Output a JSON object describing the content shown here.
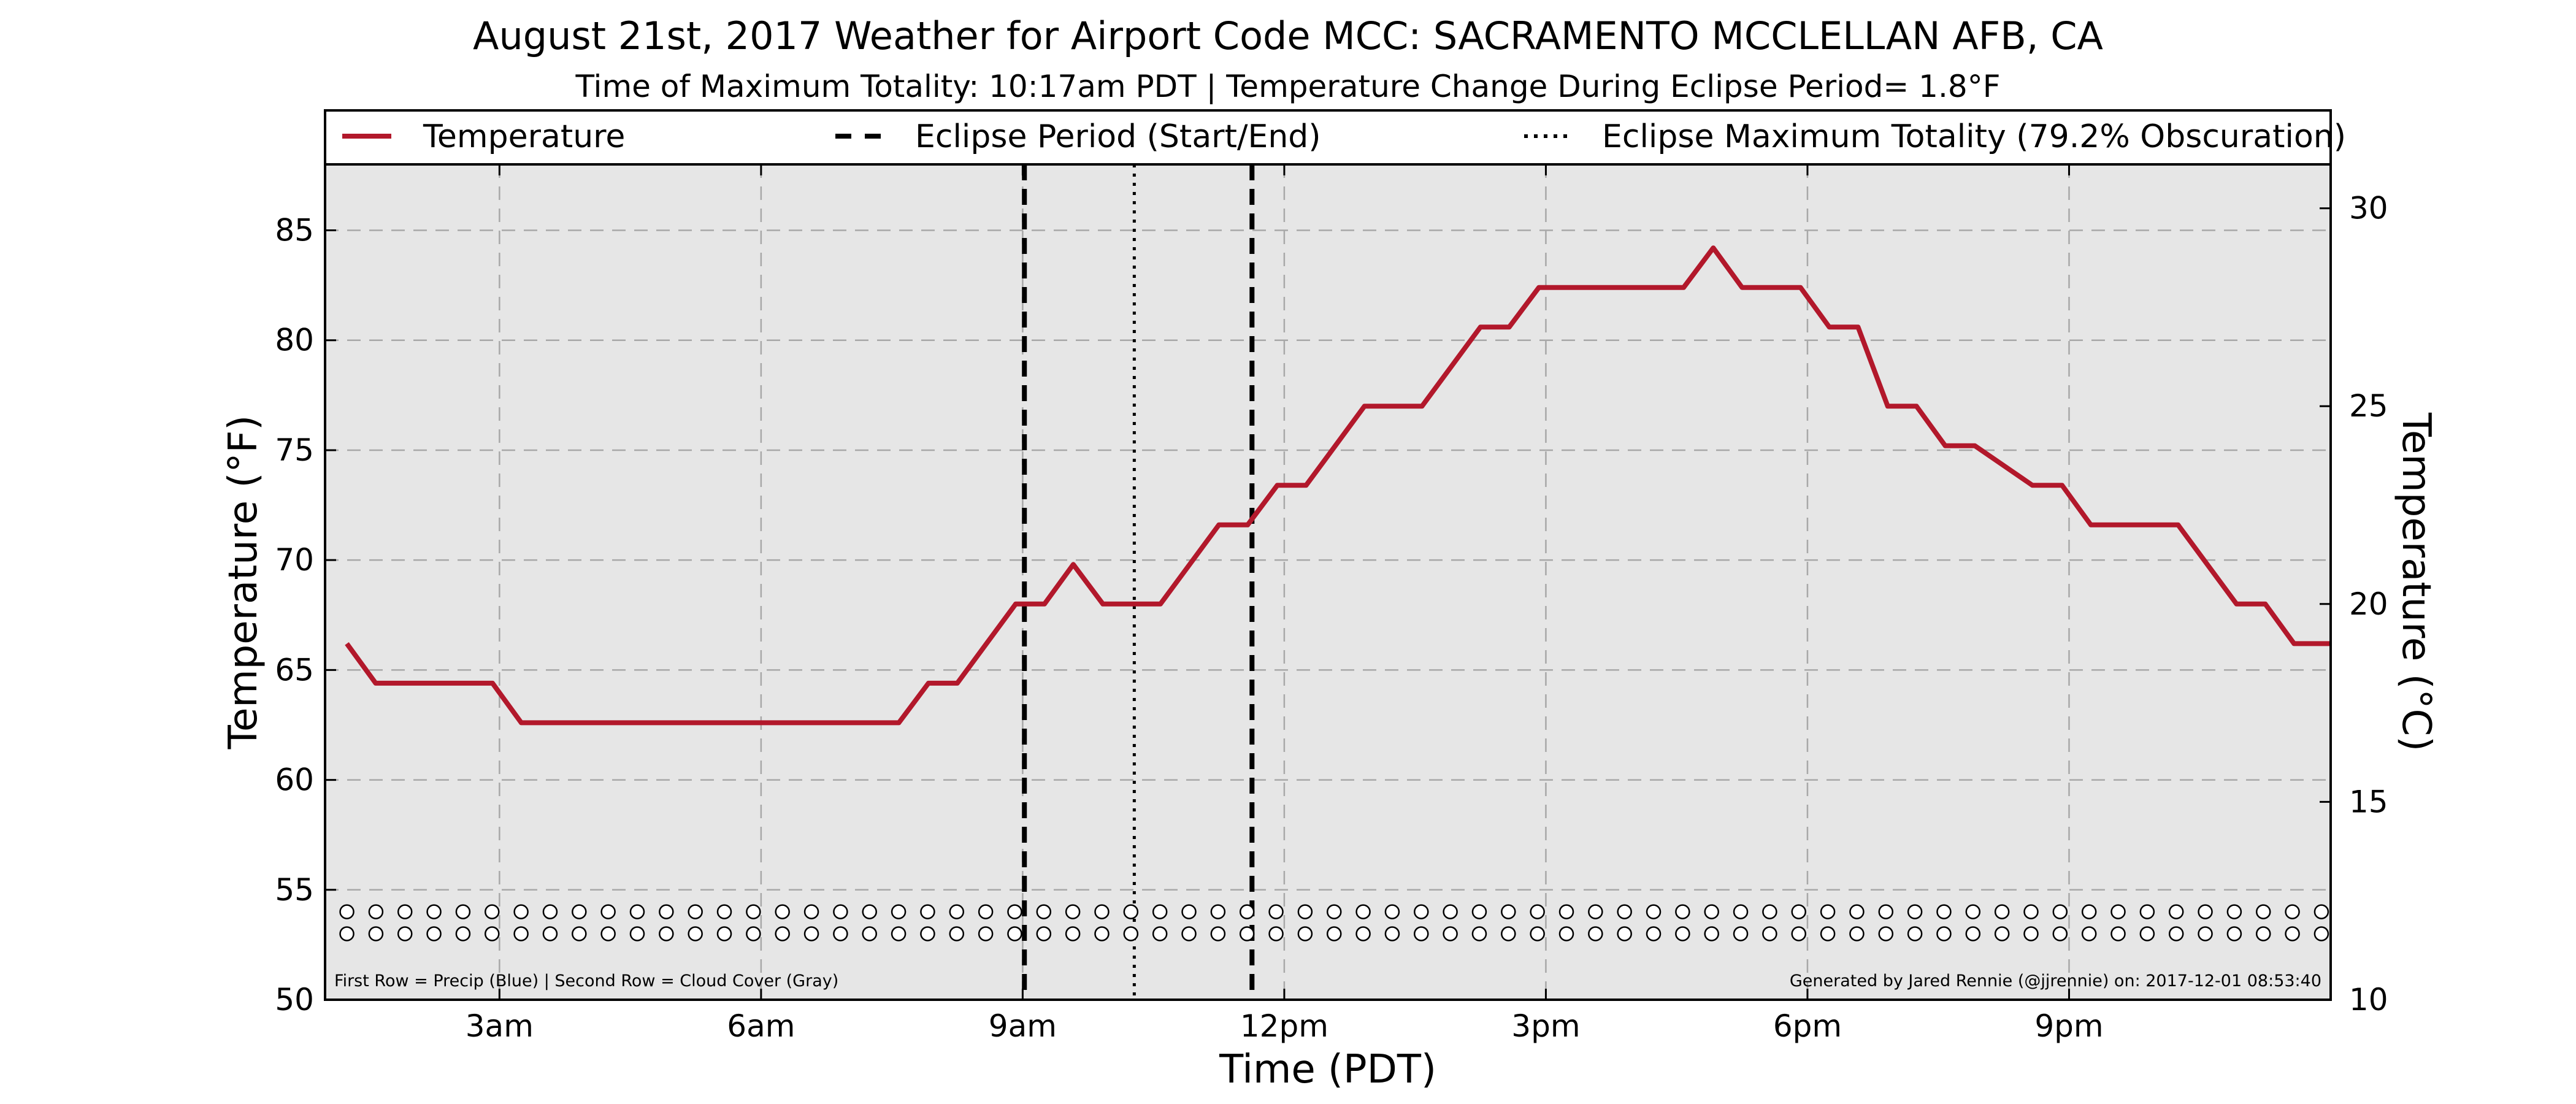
{
  "chart_data": {
    "type": "line",
    "title": "August 21st, 2017 Weather for Airport Code MCC: SACRAMENTO MCCLELLAN AFB, CA",
    "subtitle": "Time of Maximum Totality: 10:17am PDT | Temperature Change During Eclipse Period= 1.8°F",
    "xlabel": "Time (PDT)",
    "ylabel": "Temperature (°F)",
    "ylabel_right": "Temperature (°C)",
    "xlim": [
      1.0,
      24.0
    ],
    "ylim": [
      50,
      88
    ],
    "ylim_right": [
      10,
      31.11
    ],
    "x_ticks": [
      {
        "value": 3,
        "label": "3am"
      },
      {
        "value": 6,
        "label": "6am"
      },
      {
        "value": 9,
        "label": "9am"
      },
      {
        "value": 12,
        "label": "12pm"
      },
      {
        "value": 15,
        "label": "3pm"
      },
      {
        "value": 18,
        "label": "6pm"
      },
      {
        "value": 21,
        "label": "9pm"
      }
    ],
    "y_ticks": [
      "50",
      "55",
      "60",
      "65",
      "70",
      "75",
      "80",
      "85"
    ],
    "y_ticks_right": [
      "10",
      "15",
      "20",
      "25",
      "30"
    ],
    "grid": true,
    "legend_position": "top",
    "series": [
      {
        "name": "Temperature",
        "color": "#b2182b",
        "x": [
          1.25,
          1.58,
          2.92,
          3.25,
          7.58,
          7.92,
          8.25,
          8.92,
          9.25,
          9.58,
          9.92,
          10.58,
          11.25,
          11.58,
          11.92,
          12.25,
          12.92,
          13.58,
          14.25,
          14.58,
          14.92,
          16.58,
          16.92,
          17.25,
          17.92,
          18.25,
          18.58,
          18.92,
          19.25,
          19.58,
          19.92,
          20.58,
          20.92,
          21.25,
          22.25,
          22.92,
          23.25,
          23.58,
          24.0
        ],
        "values": [
          66.2,
          64.4,
          64.4,
          62.6,
          62.6,
          64.4,
          64.4,
          68.0,
          68.0,
          69.8,
          68.0,
          68.0,
          71.6,
          71.6,
          73.4,
          73.4,
          77.0,
          77.0,
          80.6,
          80.6,
          82.4,
          82.4,
          84.2,
          82.4,
          82.4,
          80.6,
          80.6,
          77.0,
          77.0,
          75.2,
          75.2,
          73.4,
          73.4,
          71.6,
          71.6,
          68.0,
          68.0,
          66.2,
          66.2
        ]
      }
    ],
    "reference_lines": [
      {
        "name": "Eclipse Period (Start/End)",
        "style": "dashed",
        "x": [
          9.02,
          11.63
        ]
      },
      {
        "name": "Eclipse Maximum Totality (79.2% Obscuration)",
        "style": "dotted",
        "x": [
          10.28
        ]
      }
    ],
    "marker_rows": {
      "precip_y": 54.0,
      "cloud_y": 53.0,
      "x_start": 1.25,
      "x_step": 0.333,
      "count": 69,
      "precip_color": "#ffffff",
      "cloud_color": "#ffffff"
    },
    "annotations": {
      "left": "First Row = Precip (Blue) | Second Row = Cloud Cover (Gray)",
      "right": "Generated by Jared Rennie (@jjrennie) on: 2017-12-01 08:53:40"
    }
  }
}
